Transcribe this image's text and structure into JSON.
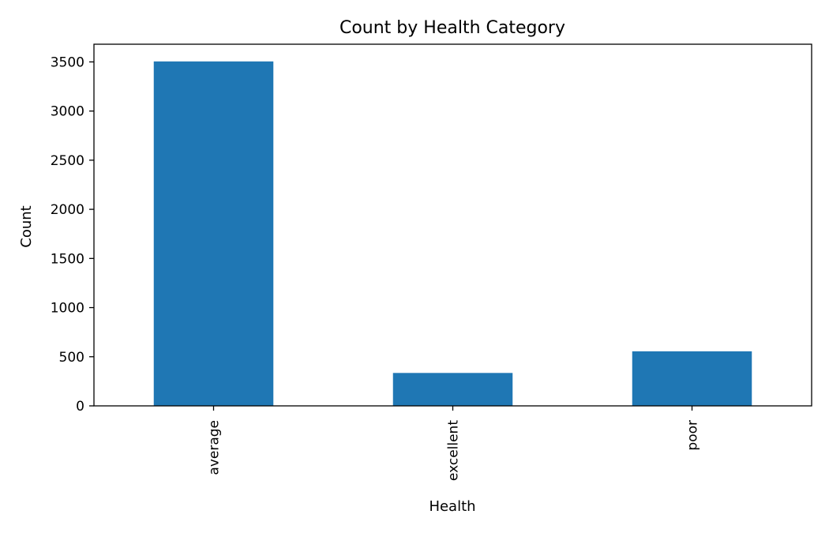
{
  "chart_data": {
    "type": "bar",
    "title": "Count by Health Category",
    "xlabel": "Health",
    "ylabel": "Count",
    "categories": [
      "average",
      "excellent",
      "poor"
    ],
    "values": [
      3505,
      335,
      555
    ],
    "ylim": [
      0,
      3680
    ],
    "yticks": [
      0,
      500,
      1000,
      1500,
      2000,
      2500,
      3000,
      3500
    ],
    "bar_color": "#1f77b4",
    "grid": false,
    "legend": "none"
  }
}
